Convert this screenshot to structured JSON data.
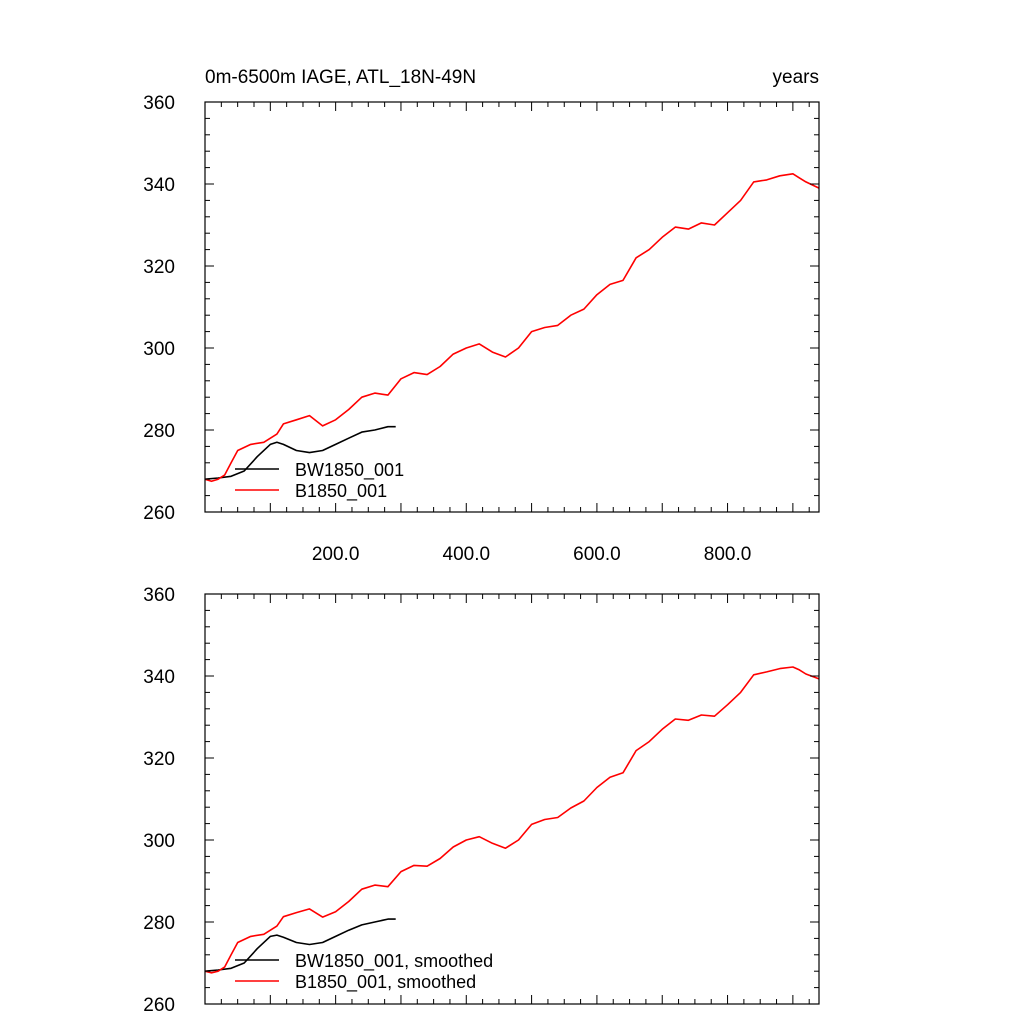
{
  "chart_data": [
    {
      "type": "line",
      "title_left": "0m-6500m IAGE, ATL_18N-49N",
      "title_right": "years",
      "xlim": [
        0,
        940
      ],
      "ylim": [
        260,
        360
      ],
      "xticks": [
        200,
        400,
        600,
        800
      ],
      "xtick_labels": [
        "200.0",
        "400.0",
        "600.0",
        "800.0"
      ],
      "yticks": [
        260,
        280,
        300,
        320,
        340,
        360
      ],
      "ytick_labels": [
        "260",
        "280",
        "300",
        "320",
        "340",
        "360"
      ],
      "legend_position": "bottom-left",
      "series": [
        {
          "name": "BW1850_001",
          "color": "#000000",
          "x": [
            0,
            20,
            40,
            60,
            80,
            100,
            110,
            120,
            140,
            160,
            180,
            200,
            220,
            240,
            260,
            280,
            292
          ],
          "y": [
            268,
            268.3,
            268.7,
            270,
            273.5,
            276.5,
            277,
            276.5,
            275,
            274.5,
            275,
            276.5,
            278,
            279.5,
            280,
            280.8,
            280.8
          ]
        },
        {
          "name": "B1850_001",
          "color": "#ff0000",
          "x": [
            0,
            10,
            20,
            30,
            40,
            50,
            70,
            90,
            110,
            120,
            140,
            160,
            180,
            200,
            220,
            240,
            260,
            280,
            300,
            320,
            340,
            360,
            380,
            400,
            420,
            440,
            460,
            480,
            500,
            520,
            540,
            560,
            580,
            600,
            620,
            640,
            660,
            680,
            700,
            720,
            740,
            760,
            780,
            800,
            820,
            840,
            860,
            880,
            900,
            910,
            920,
            940
          ],
          "y": [
            268,
            267.5,
            268,
            269,
            272,
            275,
            276.5,
            277,
            279,
            281.5,
            282.5,
            283.5,
            281,
            282.5,
            285,
            288,
            289,
            288.5,
            292.5,
            294,
            293.5,
            295.5,
            298.5,
            300,
            301,
            299,
            297.8,
            300,
            304,
            305,
            305.5,
            308,
            309.5,
            313,
            315.5,
            316.5,
            322,
            324,
            327,
            329.5,
            329,
            330.5,
            330,
            333,
            336,
            340.5,
            341,
            342,
            342.5,
            341.5,
            340.5,
            339
          ]
        }
      ]
    },
    {
      "type": "line",
      "xlim": [
        0,
        940
      ],
      "ylim": [
        260,
        360
      ],
      "yticks": [
        260,
        280,
        300,
        320,
        340,
        360
      ],
      "ytick_labels": [
        "260",
        "280",
        "300",
        "320",
        "340",
        "360"
      ],
      "legend_position": "bottom-left",
      "series": [
        {
          "name": "BW1850_001, smoothed",
          "color": "#000000",
          "x": [
            0,
            20,
            40,
            60,
            80,
            100,
            110,
            120,
            140,
            160,
            180,
            200,
            220,
            240,
            260,
            280,
            292
          ],
          "y": [
            268,
            268.3,
            268.7,
            270,
            273.5,
            276.5,
            276.8,
            276.3,
            275,
            274.5,
            275,
            276.5,
            278,
            279.3,
            280,
            280.7,
            280.7
          ]
        },
        {
          "name": "B1850_001, smoothed",
          "color": "#ff0000",
          "x": [
            0,
            10,
            20,
            30,
            40,
            50,
            70,
            90,
            110,
            120,
            140,
            160,
            180,
            200,
            220,
            240,
            260,
            280,
            300,
            320,
            340,
            360,
            380,
            400,
            420,
            440,
            460,
            480,
            500,
            520,
            540,
            560,
            580,
            600,
            620,
            640,
            660,
            680,
            700,
            720,
            740,
            760,
            780,
            800,
            820,
            840,
            860,
            880,
            900,
            910,
            920,
            940
          ],
          "y": [
            268,
            267.6,
            268,
            269,
            272,
            275,
            276.5,
            277,
            279,
            281.3,
            282.3,
            283.2,
            281.2,
            282.5,
            285,
            288,
            289,
            288.6,
            292.3,
            293.8,
            293.6,
            295.5,
            298.3,
            300,
            300.8,
            299.2,
            298,
            300,
            303.8,
            305,
            305.5,
            307.8,
            309.5,
            312.8,
            315.3,
            316.4,
            321.8,
            324,
            327,
            329.5,
            329.2,
            330.5,
            330.2,
            333,
            336,
            340.3,
            341,
            341.8,
            342.2,
            341.5,
            340.5,
            339.3
          ]
        }
      ]
    }
  ]
}
